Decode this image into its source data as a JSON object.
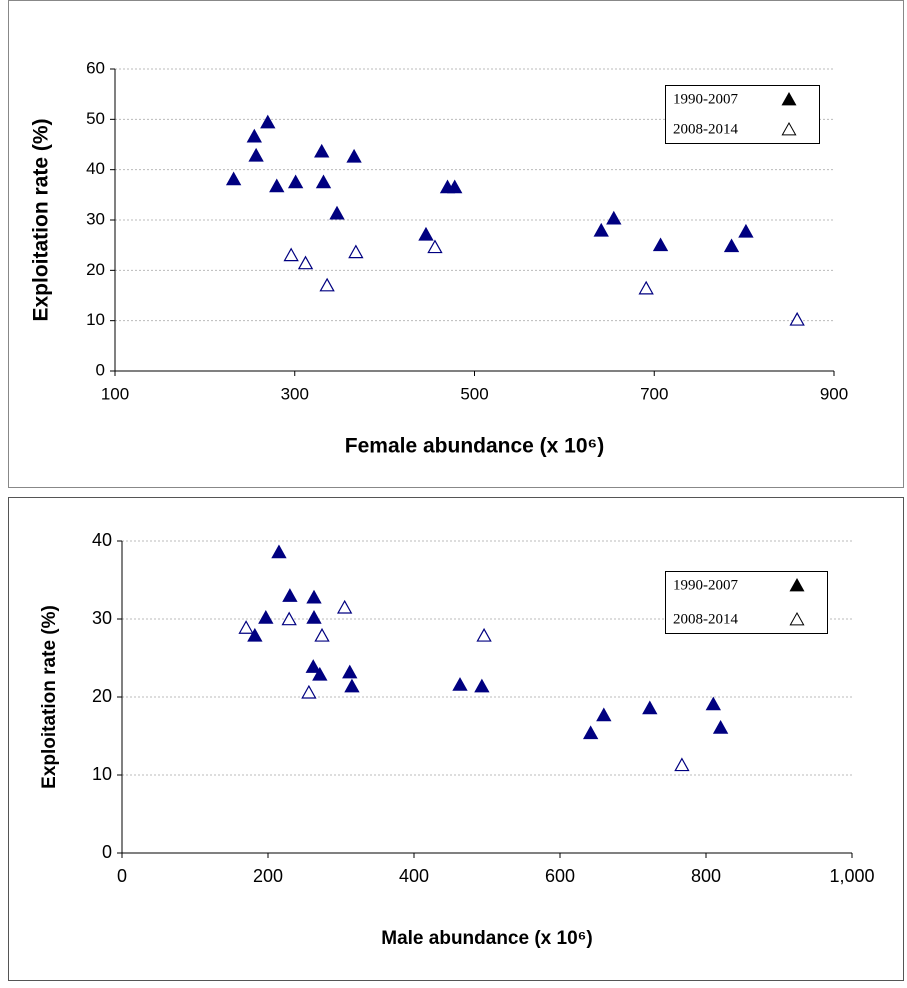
{
  "chart_data": [
    {
      "type": "scatter",
      "x_label": "Female abundance (x 10⁶)",
      "y_label": "Exploitation rate (%)",
      "xlim": [
        100,
        900
      ],
      "xticks": [
        100,
        300,
        500,
        700,
        900
      ],
      "ylim": [
        0,
        60
      ],
      "yticks": [
        0,
        10,
        20,
        30,
        40,
        50,
        60
      ],
      "grid": true,
      "legend": "upper right",
      "series": [
        {
          "name": "1990-2007",
          "color": "#000080",
          "marker": "filled",
          "x": [
            232,
            255,
            257,
            270,
            280,
            301,
            330,
            332,
            347,
            366,
            446,
            470,
            478,
            641,
            655,
            707,
            786,
            802
          ],
          "values": [
            38,
            46.5,
            42.7,
            49.3,
            36.6,
            37.4,
            43.5,
            37.4,
            31.2,
            42.5,
            27,
            36.4,
            36.4,
            27.8,
            30.2,
            24.9,
            24.7,
            27.6
          ]
        },
        {
          "name": "2008-2014",
          "color": "#000080",
          "marker": "open",
          "x": [
            296,
            312,
            336,
            368,
            456,
            691,
            859
          ],
          "values": [
            22.9,
            21.3,
            16.9,
            23.5,
            24.5,
            16.3,
            10.1
          ]
        }
      ]
    },
    {
      "type": "scatter",
      "x_label": "Male abundance (x 10⁶)",
      "y_label": "Exploitation rate (%)",
      "xlim": [
        0,
        1000
      ],
      "xticks": [
        0,
        200,
        400,
        600,
        800,
        {
          "value": 1000,
          "label": "1,000"
        }
      ],
      "ylim": [
        0,
        40
      ],
      "yticks": [
        0,
        10,
        20,
        30,
        40
      ],
      "grid": true,
      "legend": "upper right",
      "series": [
        {
          "name": "1990-2007",
          "color": "#000080",
          "marker": "filled",
          "x": [
            215,
            230,
            263,
            197,
            263,
            182,
            262,
            271,
            312,
            315,
            463,
            493,
            642,
            660,
            723,
            810,
            820
          ],
          "values": [
            38.5,
            32.9,
            32.7,
            30.1,
            30.1,
            27.8,
            23.8,
            22.8,
            23.1,
            21.3,
            21.5,
            21.3,
            15.3,
            17.6,
            18.5,
            19,
            16
          ]
        },
        {
          "name": "2008-2014",
          "color": "#000080",
          "marker": "open",
          "x": [
            170,
            229,
            274,
            305,
            256,
            496,
            767
          ],
          "values": [
            28.8,
            29.9,
            27.8,
            31.4,
            20.5,
            27.8,
            11.2
          ]
        }
      ]
    }
  ]
}
